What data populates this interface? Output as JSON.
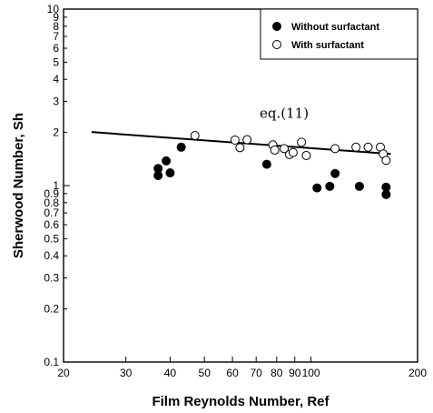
{
  "chart_data": {
    "type": "scatter",
    "xlabel": "Film Reynolds Number, Ref",
    "ylabel": "Sherwood Number, Sh",
    "xscale": "log",
    "yscale": "log",
    "xlim": [
      20,
      200
    ],
    "ylim": [
      0.1,
      10
    ],
    "x_ticks": [
      {
        "value": 20,
        "label": "20"
      },
      {
        "value": 30,
        "label": "30"
      },
      {
        "value": 40,
        "label": "40"
      },
      {
        "value": 50,
        "label": "50"
      },
      {
        "value": 60,
        "label": "60"
      },
      {
        "value": 70,
        "label": "70"
      },
      {
        "value": 80,
        "label": "80"
      },
      {
        "value": 90,
        "label": "90"
      },
      {
        "value": 100,
        "label": "100"
      },
      {
        "value": 200,
        "label": "200"
      }
    ],
    "y_ticks": [
      {
        "value": 0.1,
        "label": "0.1"
      },
      {
        "value": 0.2,
        "label": "0.2"
      },
      {
        "value": 0.3,
        "label": "0.3"
      },
      {
        "value": 0.4,
        "label": "0.4"
      },
      {
        "value": 0.5,
        "label": "0.5"
      },
      {
        "value": 0.6,
        "label": "0.6"
      },
      {
        "value": 0.7,
        "label": "0.7"
      },
      {
        "value": 0.8,
        "label": "0.8"
      },
      {
        "value": 0.9,
        "label": "0.9"
      },
      {
        "value": 1,
        "label": "1"
      },
      {
        "value": 2,
        "label": "2"
      },
      {
        "value": 3,
        "label": "3"
      },
      {
        "value": 4,
        "label": "4"
      },
      {
        "value": 5,
        "label": "5"
      },
      {
        "value": 6,
        "label": "6"
      },
      {
        "value": 7,
        "label": "7"
      },
      {
        "value": 8,
        "label": "8"
      },
      {
        "value": 9,
        "label": "9"
      },
      {
        "value": 10,
        "label": "10"
      }
    ],
    "legend_position": "top-right",
    "grid": false,
    "series": [
      {
        "name": "Without surfactant",
        "marker": "filled-circle",
        "x": [
          37,
          37,
          39,
          40,
          43,
          75,
          104,
          113,
          117,
          137,
          163,
          163
        ],
        "y": [
          1.14,
          1.25,
          1.38,
          1.18,
          1.65,
          1.32,
          0.97,
          0.99,
          1.17,
          0.99,
          0.98,
          0.89
        ]
      },
      {
        "name": "With surfactant",
        "marker": "open-circle",
        "x": [
          47,
          61,
          63,
          66,
          78,
          79,
          84,
          87,
          89,
          94,
          97,
          117,
          134,
          145,
          157,
          160,
          163
        ],
        "y": [
          1.92,
          1.81,
          1.64,
          1.82,
          1.7,
          1.59,
          1.62,
          1.5,
          1.54,
          1.76,
          1.48,
          1.62,
          1.65,
          1.65,
          1.65,
          1.51,
          1.39
        ]
      }
    ],
    "fit_line": {
      "label": "eq.(11)",
      "x": [
        24,
        168
      ],
      "y": [
        2.01,
        1.51
      ]
    },
    "annotation": {
      "text": "eq.(11)",
      "x": 84,
      "y": 2.42
    }
  }
}
